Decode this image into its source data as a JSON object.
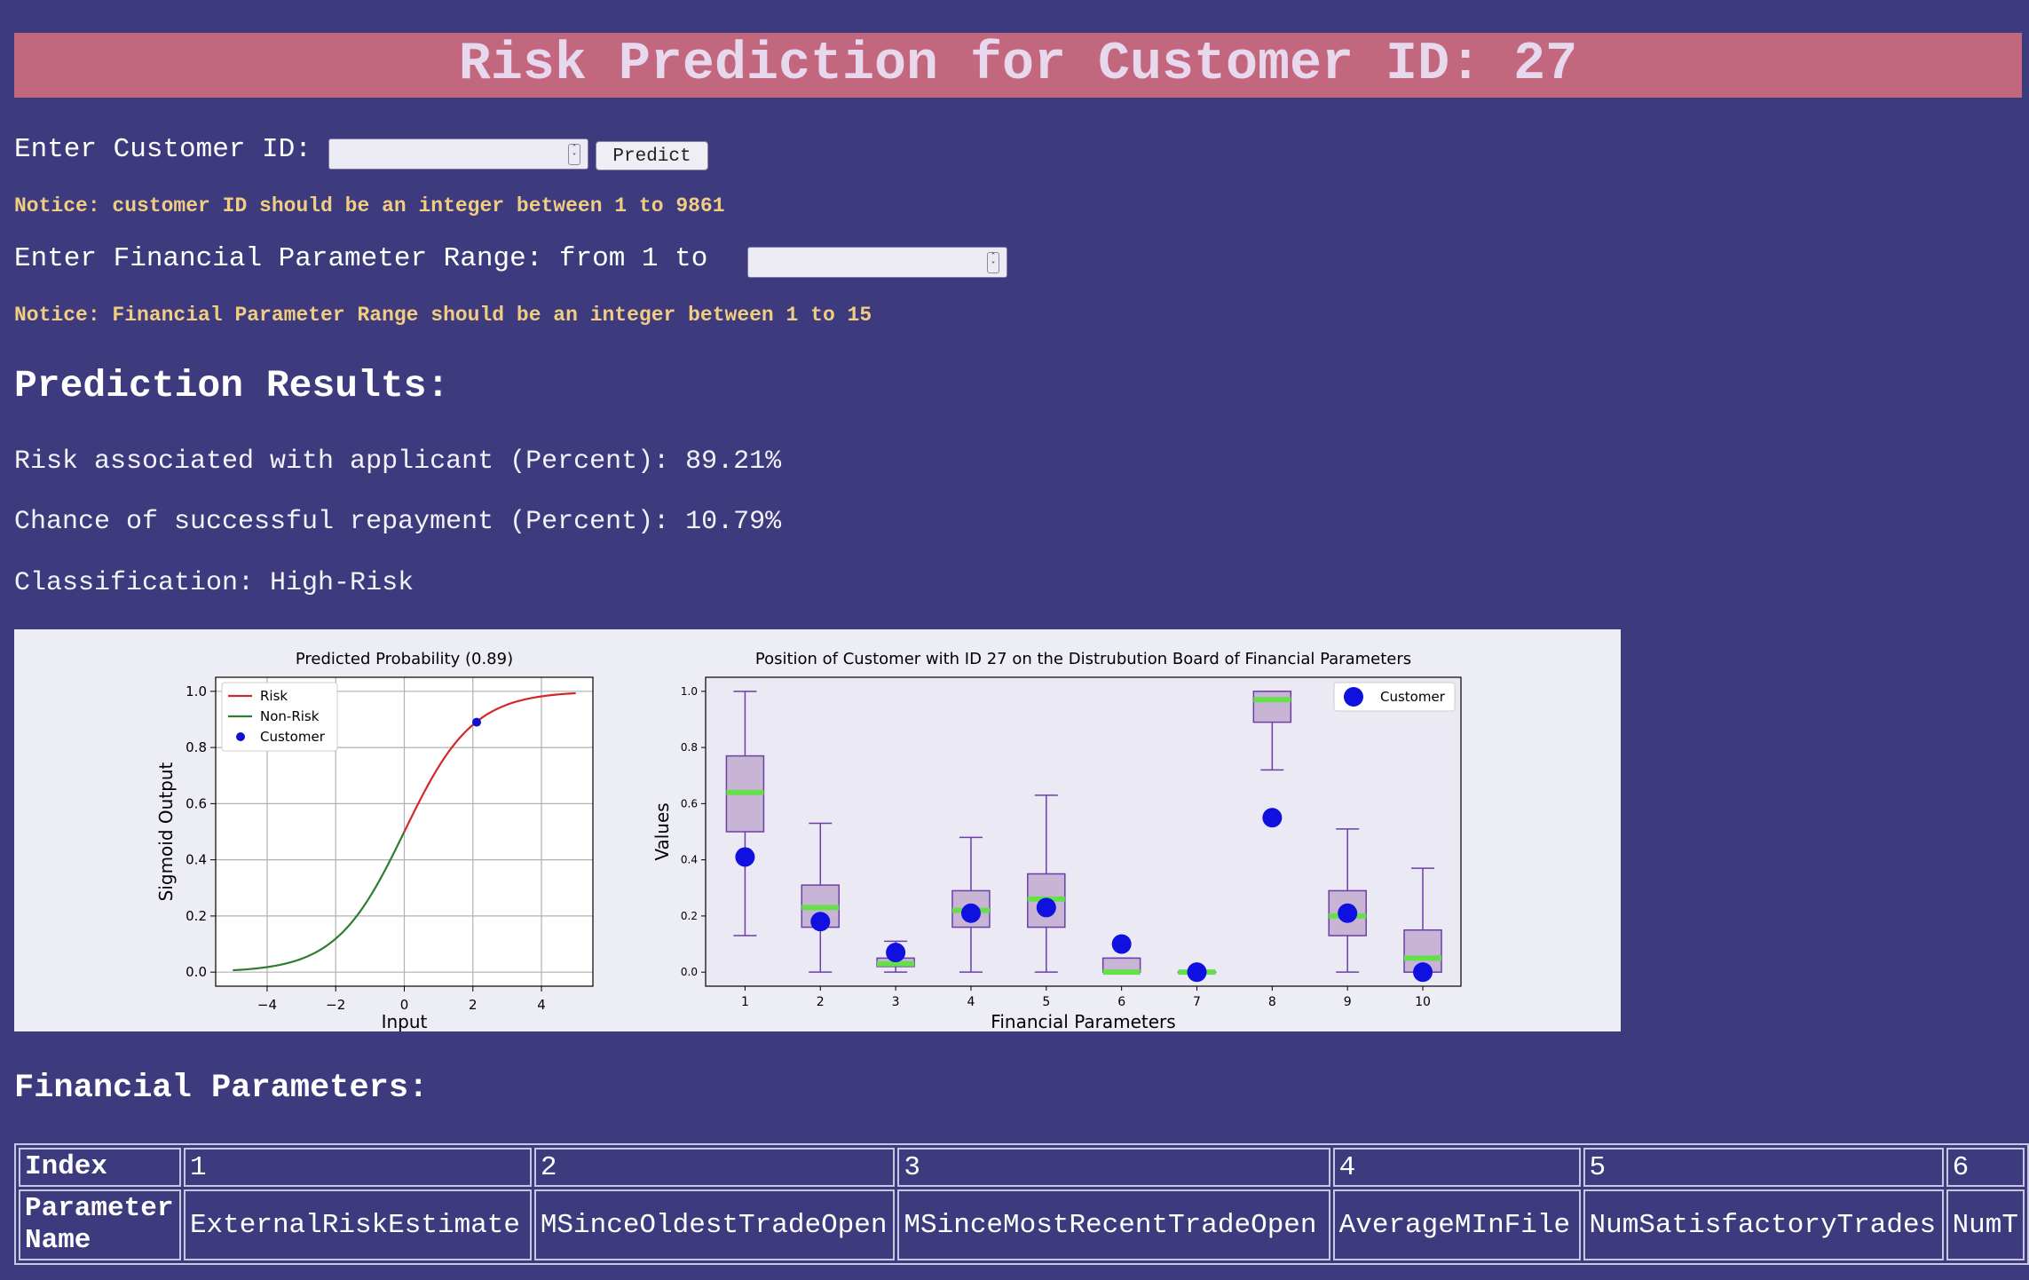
{
  "header": {
    "title": "Risk Prediction for Customer ID: 27"
  },
  "customer_form": {
    "label": "Enter Customer ID:",
    "input_value": "",
    "predict_label": "Predict",
    "notice": "Notice: customer ID should be an integer between 1 to 9861"
  },
  "range_form": {
    "label": "Enter Financial Parameter Range: from 1 to",
    "input_value": "",
    "notice": "Notice: Financial Parameter Range should be an integer between 1 to 15"
  },
  "results": {
    "heading": "Prediction Results:",
    "risk_line": "Risk associated with applicant (Percent): 89.21%",
    "repay_line": "Chance of successful repayment (Percent): 10.79%",
    "class_line": "Classification: High-Risk"
  },
  "chart_data": [
    {
      "type": "line",
      "title": "Predicted Probability (0.89)",
      "xlabel": "Input",
      "ylabel": "Sigmoid Output",
      "xlim": [
        -5.5,
        5.5
      ],
      "ylim": [
        -0.05,
        1.05
      ],
      "xticks": [
        "−4",
        "−2",
        "0",
        "2",
        "4"
      ],
      "yticks": [
        "0.0",
        "0.2",
        "0.4",
        "0.6",
        "0.8",
        "1.0"
      ],
      "grid": true,
      "legend_position": "top-left",
      "series": [
        {
          "name": "Risk",
          "color": "#d62728",
          "x_range": [
            0,
            5
          ],
          "function": "sigmoid"
        },
        {
          "name": "Non-Risk",
          "color": "#2e7d32",
          "x_range": [
            -5,
            0
          ],
          "function": "sigmoid"
        },
        {
          "name": "Customer",
          "color": "#1010d0",
          "points": [
            [
              2.11,
              0.89
            ]
          ]
        }
      ]
    },
    {
      "type": "box",
      "title": "Position of Customer with ID 27 on the Distrubution Board of Financial Parameters",
      "xlabel": "Financial Parameters",
      "ylabel": "Values",
      "categories": [
        "1",
        "2",
        "3",
        "4",
        "5",
        "6",
        "7",
        "8",
        "9",
        "10"
      ],
      "ylim": [
        -0.05,
        1.05
      ],
      "yticks": [
        "0.0",
        "0.2",
        "0.4",
        "0.6",
        "0.8",
        "1.0"
      ],
      "legend_position": "top-right",
      "box_color": "#6a3fa8",
      "median_color": "#66e04a",
      "customer_color": "#1010e0",
      "boxes": [
        {
          "whislo": 0.13,
          "q1": 0.5,
          "med": 0.64,
          "q3": 0.77,
          "whishi": 1.0
        },
        {
          "whislo": 0.0,
          "q1": 0.16,
          "med": 0.23,
          "q3": 0.31,
          "whishi": 0.53
        },
        {
          "whislo": 0.0,
          "q1": 0.02,
          "med": 0.03,
          "q3": 0.05,
          "whishi": 0.11
        },
        {
          "whislo": 0.0,
          "q1": 0.16,
          "med": 0.22,
          "q3": 0.29,
          "whishi": 0.48
        },
        {
          "whislo": 0.0,
          "q1": 0.16,
          "med": 0.26,
          "q3": 0.35,
          "whishi": 0.63
        },
        {
          "whislo": 0.0,
          "q1": 0.0,
          "med": 0.0,
          "q3": 0.05,
          "whishi": 0.05
        },
        {
          "whislo": 0.0,
          "q1": 0.0,
          "med": 0.0,
          "q3": 0.0,
          "whishi": 0.0
        },
        {
          "whislo": 0.72,
          "q1": 0.89,
          "med": 0.97,
          "q3": 1.0,
          "whishi": 1.0
        },
        {
          "whislo": 0.0,
          "q1": 0.13,
          "med": 0.2,
          "q3": 0.29,
          "whishi": 0.51
        },
        {
          "whislo": 0.0,
          "q1": 0.0,
          "med": 0.05,
          "q3": 0.15,
          "whishi": 0.37
        }
      ],
      "customer": {
        "name": "Customer",
        "values": [
          0.41,
          0.18,
          0.07,
          0.21,
          0.23,
          0.1,
          0.0,
          0.55,
          0.21,
          0.0
        ]
      }
    }
  ],
  "params": {
    "heading": "Financial Parameters:",
    "index_label": "Index",
    "name_label": "Parameter Name",
    "indices": [
      "1",
      "2",
      "3",
      "4",
      "5",
      "6"
    ],
    "names": [
      "ExternalRiskEstimate",
      "MSinceOldestTradeOpen",
      "MSinceMostRecentTradeOpen",
      "AverageMInFile",
      "NumSatisfactoryTrades",
      "NumT"
    ]
  }
}
